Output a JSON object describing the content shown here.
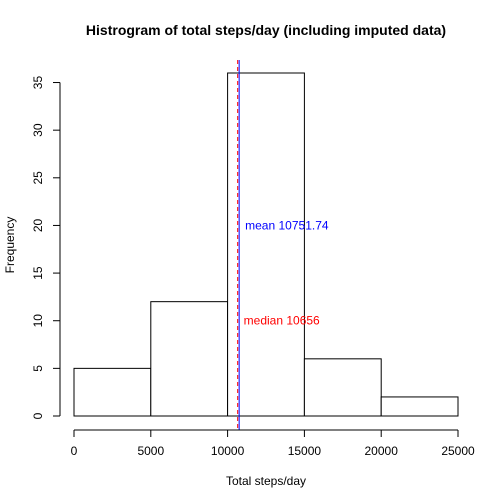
{
  "chart_data": {
    "type": "bar",
    "title": "Histrogram of total steps/day (including imputed data)",
    "xlabel": "Total steps/day",
    "ylabel": "Frequency",
    "bins": [
      {
        "from": 0,
        "to": 5000,
        "count": 5
      },
      {
        "from": 5000,
        "to": 10000,
        "count": 12
      },
      {
        "from": 10000,
        "to": 15000,
        "count": 36
      },
      {
        "from": 15000,
        "to": 20000,
        "count": 6
      },
      {
        "from": 20000,
        "to": 25000,
        "count": 2
      }
    ],
    "xlim": [
      0,
      25000
    ],
    "ylim": [
      0,
      36
    ],
    "xticks": [
      0,
      5000,
      10000,
      15000,
      20000,
      25000
    ],
    "yticks": [
      0,
      5,
      10,
      15,
      20,
      25,
      30,
      35
    ],
    "grid": false,
    "bar_fill": "#ffffff",
    "bar_stroke": "#000000",
    "lines": [
      {
        "x": 10656,
        "color": "#ff0000",
        "style": "dashed",
        "label": "median 10656",
        "label_y": 10
      },
      {
        "x": 10751.74,
        "color": "#0000ff",
        "style": "solid",
        "label": "mean 10751.74",
        "label_y": 20
      }
    ]
  }
}
